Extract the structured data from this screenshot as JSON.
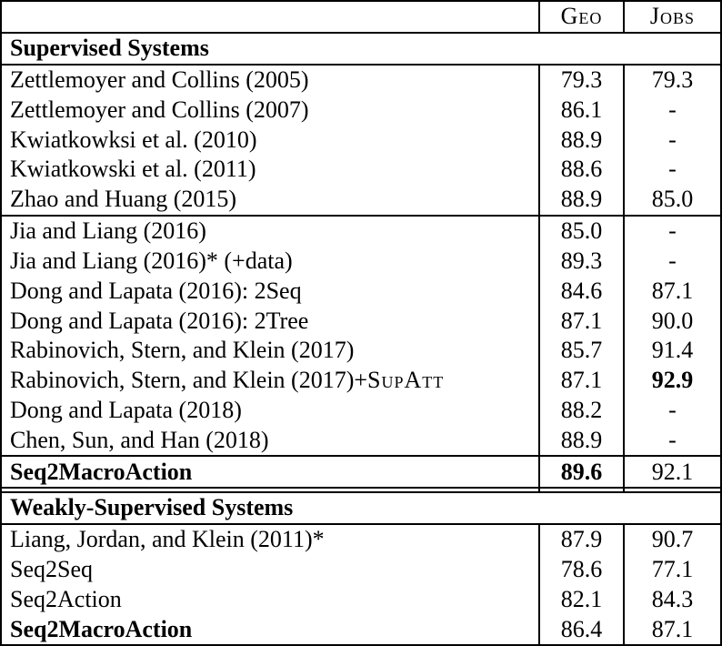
{
  "page": {
    "background_color": "#ffffff",
    "text_color": "#000000",
    "border_color": "#000000"
  },
  "table": {
    "header": {
      "geo": "Geo",
      "jobs": "Jobs"
    },
    "sections": [
      {
        "title": "Supervised Systems",
        "groups": [
          {
            "rows": [
              {
                "name": "Zettlemoyer and Collins (2005)",
                "geo": "79.3",
                "jobs": "79.3"
              },
              {
                "name": "Zettlemoyer and Collins (2007)",
                "geo": "86.1",
                "jobs": "-"
              },
              {
                "name": "Kwiatkowksi et al. (2010)",
                "geo": "88.9",
                "jobs": "-"
              },
              {
                "name": "Kwiatkowski et al. (2011)",
                "geo": "88.6",
                "jobs": "-"
              },
              {
                "name": "Zhao and Huang (2015)",
                "geo": "88.9",
                "jobs": "85.0"
              }
            ]
          },
          {
            "rows": [
              {
                "name": "Jia and Liang (2016)",
                "geo": "85.0",
                "jobs": "-"
              },
              {
                "name": "Jia and Liang (2016)* (+data)",
                "geo": "89.3",
                "jobs": "-"
              },
              {
                "name": "Dong and Lapata (2016): 2Seq",
                "geo": "84.6",
                "jobs": "87.1"
              },
              {
                "name": "Dong and Lapata (2016): 2Tree",
                "geo": "87.1",
                "jobs": "90.0"
              },
              {
                "name": "Rabinovich, Stern, and Klein (2017)",
                "geo": "85.7",
                "jobs": "91.4"
              },
              {
                "name": "Rabinovich, Stern, and Klein (2017)+",
                "name_sc": "SupAtt",
                "geo": "87.1",
                "jobs": "92.9"
              },
              {
                "name": "Dong and Lapata (2018)",
                "geo": "88.2",
                "jobs": "-"
              },
              {
                "name": "Chen, Sun, and Han (2018)",
                "geo": "88.9",
                "jobs": "-"
              }
            ]
          },
          {
            "rows": [
              {
                "name": "Seq2MacroAction",
                "geo": "89.6",
                "jobs": "92.1"
              }
            ]
          }
        ]
      },
      {
        "title": "Weakly-Supervised Systems",
        "groups": [
          {
            "rows": [
              {
                "name": "Liang, Jordan, and Klein (2011)*",
                "geo": "87.9",
                "jobs": "90.7"
              },
              {
                "name": "Seq2Seq",
                "geo": "78.6",
                "jobs": "77.1"
              },
              {
                "name": "Seq2Action",
                "geo": "82.1",
                "jobs": "84.3"
              },
              {
                "name": "Seq2MacroAction",
                "geo": "86.4",
                "jobs": "87.1"
              }
            ]
          }
        ]
      }
    ]
  }
}
